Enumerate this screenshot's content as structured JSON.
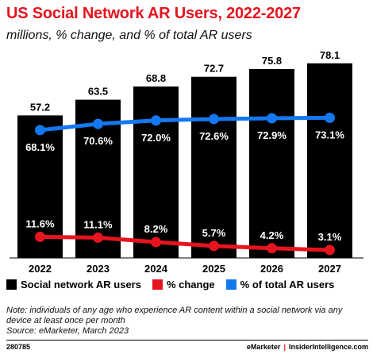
{
  "title": "US Social Network AR Users, 2022-2027",
  "subtitle": "millions, % change, and % of total AR users",
  "chart_data": {
    "type": "bar",
    "categories": [
      "2022",
      "2023",
      "2024",
      "2025",
      "2026",
      "2027"
    ],
    "series": [
      {
        "name": "Social network AR users",
        "type": "bar",
        "color": "#000000",
        "values": [
          57.2,
          63.5,
          68.8,
          72.7,
          75.8,
          78.1
        ],
        "labels": [
          "57.2",
          "63.5",
          "68.8",
          "72.7",
          "75.8",
          "78.1"
        ]
      },
      {
        "name": "% change",
        "type": "line",
        "color": "#e6141e",
        "values": [
          11.6,
          11.1,
          8.2,
          5.7,
          4.2,
          3.1
        ],
        "labels": [
          "11.6%",
          "11.1%",
          "8.2%",
          "5.7%",
          "4.2%",
          "3.1%"
        ]
      },
      {
        "name": "% of total AR users",
        "type": "line",
        "color": "#1478f0",
        "values": [
          68.1,
          70.6,
          72.0,
          72.6,
          72.9,
          73.1
        ],
        "labels": [
          "68.1%",
          "70.6%",
          "72.0%",
          "72.6%",
          "72.9%",
          "73.1%"
        ]
      }
    ]
  },
  "legend": {
    "items": [
      {
        "label": "Social network AR users",
        "color": "#000000"
      },
      {
        "label": "% change",
        "color": "#e6141e"
      },
      {
        "label": "% of total AR users",
        "color": "#1478f0"
      }
    ]
  },
  "note": {
    "line1": "Note: individuals of any age who experience AR content within a social network via any device at least once per month",
    "line2": "Source: eMarketer, March 2023"
  },
  "footer": {
    "id": "280785",
    "brand1": "eMarketer",
    "separator": "|",
    "brand2": "InsiderIntelligence.com"
  }
}
